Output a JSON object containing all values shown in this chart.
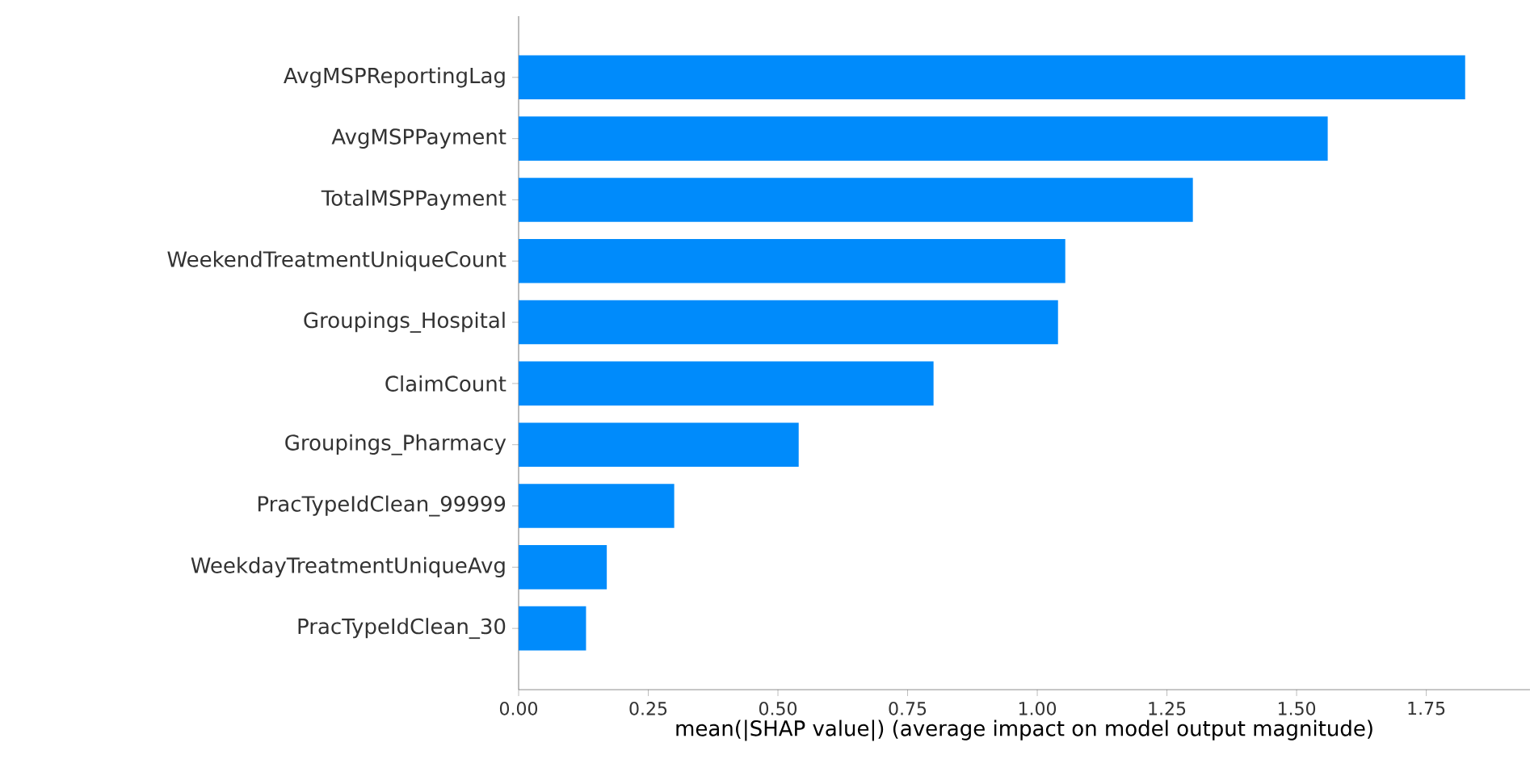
{
  "chart_data": {
    "type": "bar",
    "orientation": "horizontal",
    "categories": [
      "AvgMSPReportingLag",
      "AvgMSPPayment",
      "TotalMSPPayment",
      "WeekendTreatmentUniqueCount",
      "Groupings_Hospital",
      "ClaimCount",
      "Groupings_Pharmacy",
      "PracTypeIdClean_99999",
      "WeekdayTreatmentUniqueAvg",
      "PracTypeIdClean_30"
    ],
    "values": [
      1.825,
      1.56,
      1.3,
      1.054,
      1.04,
      0.8,
      0.54,
      0.3,
      0.17,
      0.13
    ],
    "color": "#008bfb",
    "xlabel": "mean(|SHAP value|) (average impact on model output magnitude)",
    "xlim": [
      0,
      1.95
    ],
    "xticks": [
      {
        "value": 0,
        "label": "0.00"
      },
      {
        "value": 0.25,
        "label": "0.25"
      },
      {
        "value": 0.5,
        "label": "0.50"
      },
      {
        "value": 0.75,
        "label": "0.75"
      },
      {
        "value": 1.0,
        "label": "1.00"
      },
      {
        "value": 1.25,
        "label": "1.25"
      },
      {
        "value": 1.5,
        "label": "1.50"
      },
      {
        "value": 1.75,
        "label": "1.75"
      }
    ]
  }
}
